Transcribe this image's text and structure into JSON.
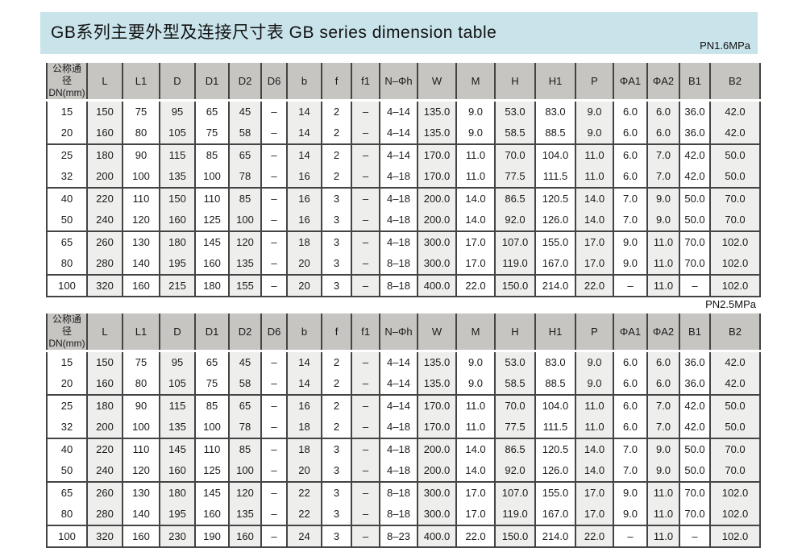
{
  "header": {
    "title": "GB系列主要外型及连接尺寸表 GB series dimension table"
  },
  "columns": [
    {
      "key": "dn",
      "lines": [
        "公称通径",
        "DN(mm)"
      ]
    },
    {
      "key": "l",
      "lines": [
        "L"
      ]
    },
    {
      "key": "l1",
      "lines": [
        "L1"
      ]
    },
    {
      "key": "d",
      "lines": [
        "D"
      ]
    },
    {
      "key": "d1",
      "lines": [
        "D1"
      ]
    },
    {
      "key": "d2",
      "lines": [
        "D2"
      ]
    },
    {
      "key": "d6",
      "lines": [
        "D6"
      ]
    },
    {
      "key": "b",
      "lines": [
        "b"
      ]
    },
    {
      "key": "f",
      "lines": [
        "f"
      ]
    },
    {
      "key": "f1",
      "lines": [
        "f1"
      ]
    },
    {
      "key": "n-phi-h",
      "lines": [
        "N–Φh"
      ]
    },
    {
      "key": "w",
      "lines": [
        "W"
      ]
    },
    {
      "key": "m",
      "lines": [
        "M"
      ]
    },
    {
      "key": "h",
      "lines": [
        "H"
      ]
    },
    {
      "key": "h1",
      "lines": [
        "H1"
      ]
    },
    {
      "key": "p",
      "lines": [
        "P"
      ]
    },
    {
      "key": "phi-a1",
      "lines": [
        "ΦA1"
      ]
    },
    {
      "key": "phi-a2",
      "lines": [
        "ΦA2"
      ]
    },
    {
      "key": "b1",
      "lines": [
        "B1"
      ]
    },
    {
      "key": "b2",
      "lines": [
        "B2"
      ]
    }
  ],
  "tables": [
    {
      "pressure_label": "PN1.6MPa",
      "rows": [
        [
          "15",
          "150",
          "75",
          "95",
          "65",
          "45",
          "–",
          "14",
          "2",
          "–",
          "4–14",
          "135.0",
          "9.0",
          "53.0",
          "83.0",
          "9.0",
          "6.0",
          "6.0",
          "36.0",
          "42.0"
        ],
        [
          "20",
          "160",
          "80",
          "105",
          "75",
          "58",
          "–",
          "14",
          "2",
          "–",
          "4–14",
          "135.0",
          "9.0",
          "58.5",
          "88.5",
          "9.0",
          "6.0",
          "6.0",
          "36.0",
          "42.0"
        ],
        [
          "25",
          "180",
          "90",
          "115",
          "85",
          "65",
          "–",
          "14",
          "2",
          "–",
          "4–14",
          "170.0",
          "11.0",
          "70.0",
          "104.0",
          "11.0",
          "6.0",
          "7.0",
          "42.0",
          "50.0"
        ],
        [
          "32",
          "200",
          "100",
          "135",
          "100",
          "78",
          "–",
          "16",
          "2",
          "–",
          "4–18",
          "170.0",
          "11.0",
          "77.5",
          "111.5",
          "11.0",
          "6.0",
          "7.0",
          "42.0",
          "50.0"
        ],
        [
          "40",
          "220",
          "110",
          "150",
          "110",
          "85",
          "–",
          "16",
          "3",
          "–",
          "4–18",
          "200.0",
          "14.0",
          "86.5",
          "120.5",
          "14.0",
          "7.0",
          "9.0",
          "50.0",
          "70.0"
        ],
        [
          "50",
          "240",
          "120",
          "160",
          "125",
          "100",
          "–",
          "16",
          "3",
          "–",
          "4–18",
          "200.0",
          "14.0",
          "92.0",
          "126.0",
          "14.0",
          "7.0",
          "9.0",
          "50.0",
          "70.0"
        ],
        [
          "65",
          "260",
          "130",
          "180",
          "145",
          "120",
          "–",
          "18",
          "3",
          "–",
          "4–18",
          "300.0",
          "17.0",
          "107.0",
          "155.0",
          "17.0",
          "9.0",
          "11.0",
          "70.0",
          "102.0"
        ],
        [
          "80",
          "280",
          "140",
          "195",
          "160",
          "135",
          "–",
          "20",
          "3",
          "–",
          "8–18",
          "300.0",
          "17.0",
          "119.0",
          "167.0",
          "17.0",
          "9.0",
          "11.0",
          "70.0",
          "102.0"
        ],
        [
          "100",
          "320",
          "160",
          "215",
          "180",
          "155",
          "–",
          "20",
          "3",
          "–",
          "8–18",
          "400.0",
          "22.0",
          "150.0",
          "214.0",
          "22.0",
          "–",
          "11.0",
          "–",
          "102.0"
        ]
      ]
    },
    {
      "pressure_label": "PN2.5MPa",
      "rows": [
        [
          "15",
          "150",
          "75",
          "95",
          "65",
          "45",
          "–",
          "14",
          "2",
          "–",
          "4–14",
          "135.0",
          "9.0",
          "53.0",
          "83.0",
          "9.0",
          "6.0",
          "6.0",
          "36.0",
          "42.0"
        ],
        [
          "20",
          "160",
          "80",
          "105",
          "75",
          "58",
          "–",
          "14",
          "2",
          "–",
          "4–14",
          "135.0",
          "9.0",
          "58.5",
          "88.5",
          "9.0",
          "6.0",
          "6.0",
          "36.0",
          "42.0"
        ],
        [
          "25",
          "180",
          "90",
          "115",
          "85",
          "65",
          "–",
          "16",
          "2",
          "–",
          "4–14",
          "170.0",
          "11.0",
          "70.0",
          "104.0",
          "11.0",
          "6.0",
          "7.0",
          "42.0",
          "50.0"
        ],
        [
          "32",
          "200",
          "100",
          "135",
          "100",
          "78",
          "–",
          "18",
          "2",
          "–",
          "4–18",
          "170.0",
          "11.0",
          "77.5",
          "111.5",
          "11.0",
          "6.0",
          "7.0",
          "42.0",
          "50.0"
        ],
        [
          "40",
          "220",
          "110",
          "145",
          "110",
          "85",
          "–",
          "18",
          "3",
          "–",
          "4–18",
          "200.0",
          "14.0",
          "86.5",
          "120.5",
          "14.0",
          "7.0",
          "9.0",
          "50.0",
          "70.0"
        ],
        [
          "50",
          "240",
          "120",
          "160",
          "125",
          "100",
          "–",
          "20",
          "3",
          "–",
          "4–18",
          "200.0",
          "14.0",
          "92.0",
          "126.0",
          "14.0",
          "7.0",
          "9.0",
          "50.0",
          "70.0"
        ],
        [
          "65",
          "260",
          "130",
          "180",
          "145",
          "120",
          "–",
          "22",
          "3",
          "–",
          "8–18",
          "300.0",
          "17.0",
          "107.0",
          "155.0",
          "17.0",
          "9.0",
          "11.0",
          "70.0",
          "102.0"
        ],
        [
          "80",
          "280",
          "140",
          "195",
          "160",
          "135",
          "–",
          "22",
          "3",
          "–",
          "8–18",
          "300.0",
          "17.0",
          "119.0",
          "167.0",
          "17.0",
          "9.0",
          "11.0",
          "70.0",
          "102.0"
        ],
        [
          "100",
          "320",
          "160",
          "230",
          "190",
          "160",
          "–",
          "24",
          "3",
          "–",
          "8–23",
          "400.0",
          "22.0",
          "150.0",
          "214.0",
          "22.0",
          "–",
          "11.0",
          "–",
          "102.0"
        ]
      ]
    }
  ],
  "colors": {
    "title_bar_bg": "#c9e3ea",
    "header_cell_bg": "#c6c5c1",
    "tint_column_bg": "#eeeeec",
    "grid_line": "#444444",
    "text": "#1a1a1a"
  }
}
